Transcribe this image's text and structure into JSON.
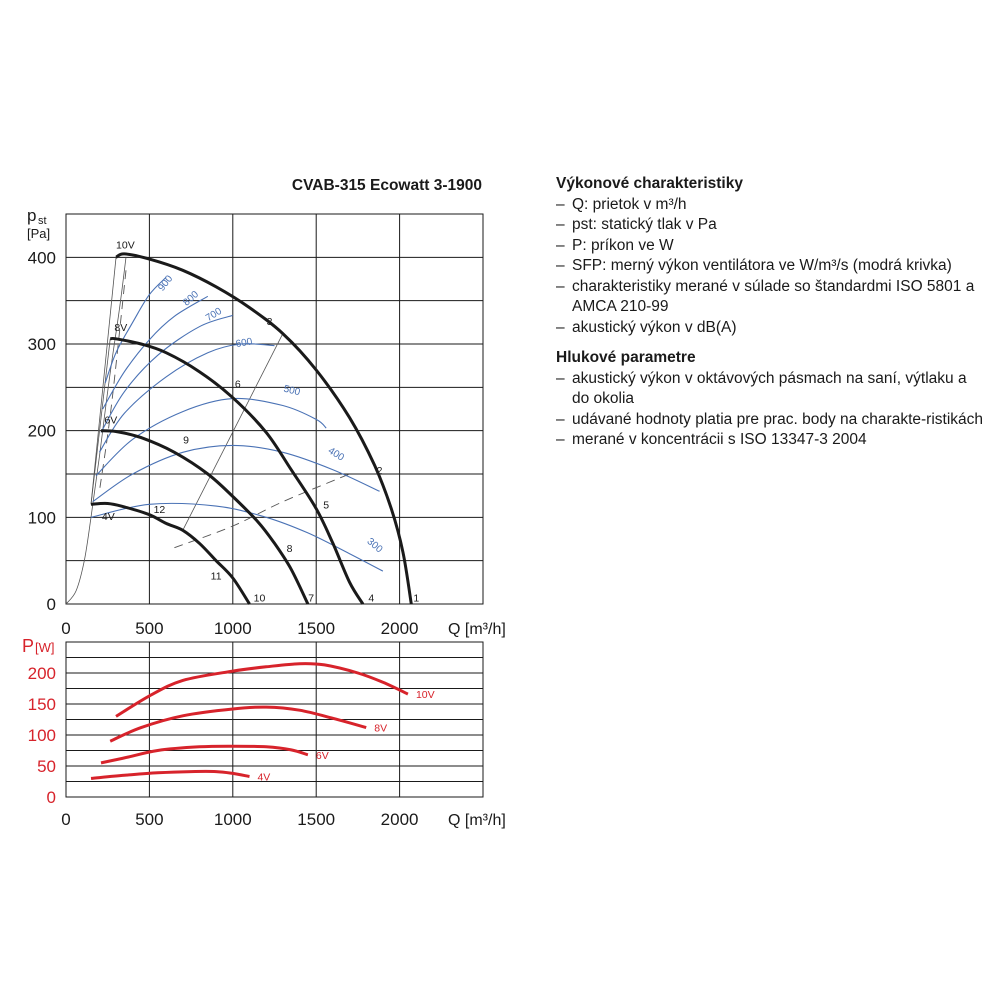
{
  "chart_title": "CVAB-315 Ecowatt 3-1900",
  "chart_data": [
    {
      "type": "line",
      "title": "CVAB-315 Ecowatt 3-1900",
      "ylabel_main": "p",
      "ylabel_sub": "st",
      "yunit": "[Pa]",
      "xlabel": "Q [m³/h]",
      "xlim": [
        0,
        2500
      ],
      "ylim": [
        0,
        450
      ],
      "xticks": [
        0,
        500,
        1000,
        1500,
        2000
      ],
      "yticks": [
        0,
        100,
        200,
        300,
        400
      ],
      "grid": true,
      "fan_curves": [
        {
          "name": "10V",
          "points": [
            [
              300,
              400
            ],
            [
              350,
              404
            ],
            [
              500,
              398
            ],
            [
              700,
              385
            ],
            [
              900,
              366
            ],
            [
              1100,
              342
            ],
            [
              1300,
              312
            ],
            [
              1500,
              270
            ],
            [
              1700,
              215
            ],
            [
              1850,
              160
            ],
            [
              1950,
              110
            ],
            [
              2020,
              60
            ],
            [
              2070,
              0
            ]
          ]
        },
        {
          "name": "8V",
          "points": [
            [
              265,
              306
            ],
            [
              300,
              306
            ],
            [
              450,
              300
            ],
            [
              600,
              290
            ],
            [
              800,
              268
            ],
            [
              1000,
              238
            ],
            [
              1200,
              198
            ],
            [
              1350,
              155
            ],
            [
              1500,
              110
            ],
            [
              1600,
              70
            ],
            [
              1700,
              25
            ],
            [
              1780,
              0
            ]
          ]
        },
        {
          "name": "6V",
          "points": [
            [
              210,
              200
            ],
            [
              300,
              199
            ],
            [
              450,
              192
            ],
            [
              650,
              175
            ],
            [
              850,
              150
            ],
            [
              1000,
              124
            ],
            [
              1150,
              95
            ],
            [
              1250,
              70
            ],
            [
              1350,
              40
            ],
            [
              1450,
              0
            ]
          ]
        },
        {
          "name": "4V",
          "points": [
            [
              150,
              115
            ],
            [
              250,
              116
            ],
            [
              350,
              112
            ],
            [
              500,
              103
            ],
            [
              600,
              93
            ],
            [
              700,
              85
            ],
            [
              800,
              70
            ],
            [
              900,
              50
            ],
            [
              1000,
              30
            ],
            [
              1100,
              0
            ]
          ]
        }
      ],
      "sfp_curves": [
        {
          "name": "900",
          "points": [
            [
              235,
              255
            ],
            [
              300,
              290
            ],
            [
              400,
              325
            ],
            [
              500,
              357
            ],
            [
              600,
              377
            ]
          ]
        },
        {
          "name": "800",
          "points": [
            [
              220,
              225
            ],
            [
              350,
              268
            ],
            [
              500,
              305
            ],
            [
              650,
              332
            ],
            [
              850,
              355
            ]
          ]
        },
        {
          "name": "700",
          "points": [
            [
              210,
              198
            ],
            [
              350,
              245
            ],
            [
              550,
              287
            ],
            [
              800,
              320
            ],
            [
              1000,
              333
            ]
          ]
        },
        {
          "name": "600",
          "points": [
            [
              200,
              175
            ],
            [
              350,
              220
            ],
            [
              600,
              262
            ],
            [
              850,
              290
            ],
            [
              1050,
              300
            ],
            [
              1250,
              298
            ]
          ]
        },
        {
          "name": "500",
          "points": [
            [
              180,
              148
            ],
            [
              400,
              190
            ],
            [
              700,
              222
            ],
            [
              1000,
              237
            ],
            [
              1300,
              229
            ],
            [
              1500,
              213
            ],
            [
              1560,
              203
            ]
          ]
        },
        {
          "name": "400",
          "points": [
            [
              160,
              118
            ],
            [
              400,
              150
            ],
            [
              700,
              175
            ],
            [
              1000,
              183
            ],
            [
              1300,
              175
            ],
            [
              1600,
              155
            ],
            [
              1880,
              130
            ]
          ]
        },
        {
          "name": "300",
          "points": [
            [
              150,
              100
            ],
            [
              500,
              115
            ],
            [
              900,
              113
            ],
            [
              1200,
              100
            ],
            [
              1450,
              82
            ],
            [
              1700,
              58
            ],
            [
              1900,
              38
            ]
          ]
        }
      ],
      "system_curves": [
        {
          "name": "10V-start",
          "points": [
            [
              0,
              0
            ],
            [
              60,
              15
            ],
            [
              110,
              50
            ],
            [
              150,
              100
            ],
            [
              200,
              170
            ],
            [
              260,
              260
            ],
            [
              320,
              340
            ],
            [
              360,
              400
            ]
          ]
        }
      ],
      "dashed_lines": [
        {
          "points": [
            [
              360,
              385
            ],
            [
              270,
              225
            ],
            [
              200,
              130
            ]
          ]
        },
        {
          "points": [
            [
              650,
              65
            ],
            [
              1000,
              90
            ],
            [
              1300,
              118
            ],
            [
              1700,
              150
            ]
          ]
        }
      ],
      "operating_point_labels": [
        {
          "label": "1",
          "x": 2100,
          "y": 3
        },
        {
          "label": "2",
          "x": 1880,
          "y": 150
        },
        {
          "label": "3",
          "x": 1220,
          "y": 322
        },
        {
          "label": "4",
          "x": 1830,
          "y": 3
        },
        {
          "label": "5",
          "x": 1560,
          "y": 110
        },
        {
          "label": "6",
          "x": 1030,
          "y": 250
        },
        {
          "label": "7",
          "x": 1470,
          "y": 3
        },
        {
          "label": "8",
          "x": 1340,
          "y": 60
        },
        {
          "label": "9",
          "x": 720,
          "y": 185
        },
        {
          "label": "10",
          "x": 1160,
          "y": 3
        },
        {
          "label": "11",
          "x": 900,
          "y": 28
        },
        {
          "label": "12",
          "x": 560,
          "y": 105
        }
      ],
      "voltage_labels": [
        {
          "label": "10V",
          "x": 300,
          "y": 410
        },
        {
          "label": "8V",
          "x": 290,
          "y": 315
        },
        {
          "label": "6V",
          "x": 230,
          "y": 208
        },
        {
          "label": "4V",
          "x": 215,
          "y": 97
        }
      ],
      "sfp_labels": [
        {
          "label": "900",
          "x": 610,
          "y": 368,
          "angle": -52
        },
        {
          "label": "800",
          "x": 760,
          "y": 350,
          "angle": -42
        },
        {
          "label": "700",
          "x": 895,
          "y": 331,
          "angle": -32
        },
        {
          "label": "600",
          "x": 1070,
          "y": 298,
          "angle": -10
        },
        {
          "label": "500",
          "x": 1350,
          "y": 243,
          "angle": 14
        },
        {
          "label": "400",
          "x": 1610,
          "y": 170,
          "angle": 32
        },
        {
          "label": "300",
          "x": 1840,
          "y": 65,
          "angle": 40
        }
      ]
    },
    {
      "type": "line",
      "ylabel_main": "P",
      "yunit": "[W]",
      "xlabel": "Q [m³/h]",
      "xlim": [
        0,
        2500
      ],
      "ylim": [
        0,
        250
      ],
      "xticks": [
        0,
        500,
        1000,
        1500,
        2000
      ],
      "yticks": [
        0,
        50,
        100,
        150,
        200
      ],
      "grid": true,
      "series": [
        {
          "name": "10V",
          "points": [
            [
              300,
              130
            ],
            [
              500,
              163
            ],
            [
              700,
              188
            ],
            [
              1000,
              203
            ],
            [
              1200,
              210
            ],
            [
              1400,
              215
            ],
            [
              1550,
              213
            ],
            [
              1750,
              200
            ],
            [
              1900,
              185
            ],
            [
              2050,
              166
            ]
          ]
        },
        {
          "name": "8V",
          "points": [
            [
              265,
              90
            ],
            [
              450,
              112
            ],
            [
              700,
              131
            ],
            [
              1000,
              142
            ],
            [
              1200,
              145
            ],
            [
              1400,
              140
            ],
            [
              1600,
              127
            ],
            [
              1800,
              112
            ]
          ]
        },
        {
          "name": "6V",
          "points": [
            [
              210,
              55
            ],
            [
              350,
              63
            ],
            [
              550,
              75
            ],
            [
              800,
              81
            ],
            [
              1000,
              82
            ],
            [
              1200,
              81
            ],
            [
              1350,
              76
            ],
            [
              1450,
              68
            ]
          ]
        },
        {
          "name": "4V",
          "points": [
            [
              150,
              30
            ],
            [
              350,
              35
            ],
            [
              550,
              39
            ],
            [
              750,
              41
            ],
            [
              900,
              41
            ],
            [
              1000,
              38
            ],
            [
              1100,
              33
            ]
          ]
        }
      ]
    }
  ],
  "notes": {
    "heading1": "Výkonové charakteristiky",
    "items1": [
      "Q: prietok v m³/h",
      "pst: statický tlak v Pa",
      "P: príkon ve W",
      "SFP: merný výkon ventilátora ve W/m³/s (modrá krivka)",
      "charakteristiky merané v súlade so štandardmi ISO 5801 a AMCA 210-99",
      "akustický výkon v dB(A)"
    ],
    "heading2": "Hlukové parametre",
    "items2": [
      "akustický výkon v oktávových pásmach na saní, výtlaku a do okolia",
      "udávané hodnoty platia pre prac. body na charakte-ristikách",
      "merané v koncentrácii s ISO 13347-3 2004"
    ]
  },
  "colors": {
    "fan_curve": "#1a1a1a",
    "sfp_curve": "#4a72b5",
    "power_curve": "#d7232b",
    "grid": "#1a1a1a",
    "system_curve": "#555555"
  }
}
